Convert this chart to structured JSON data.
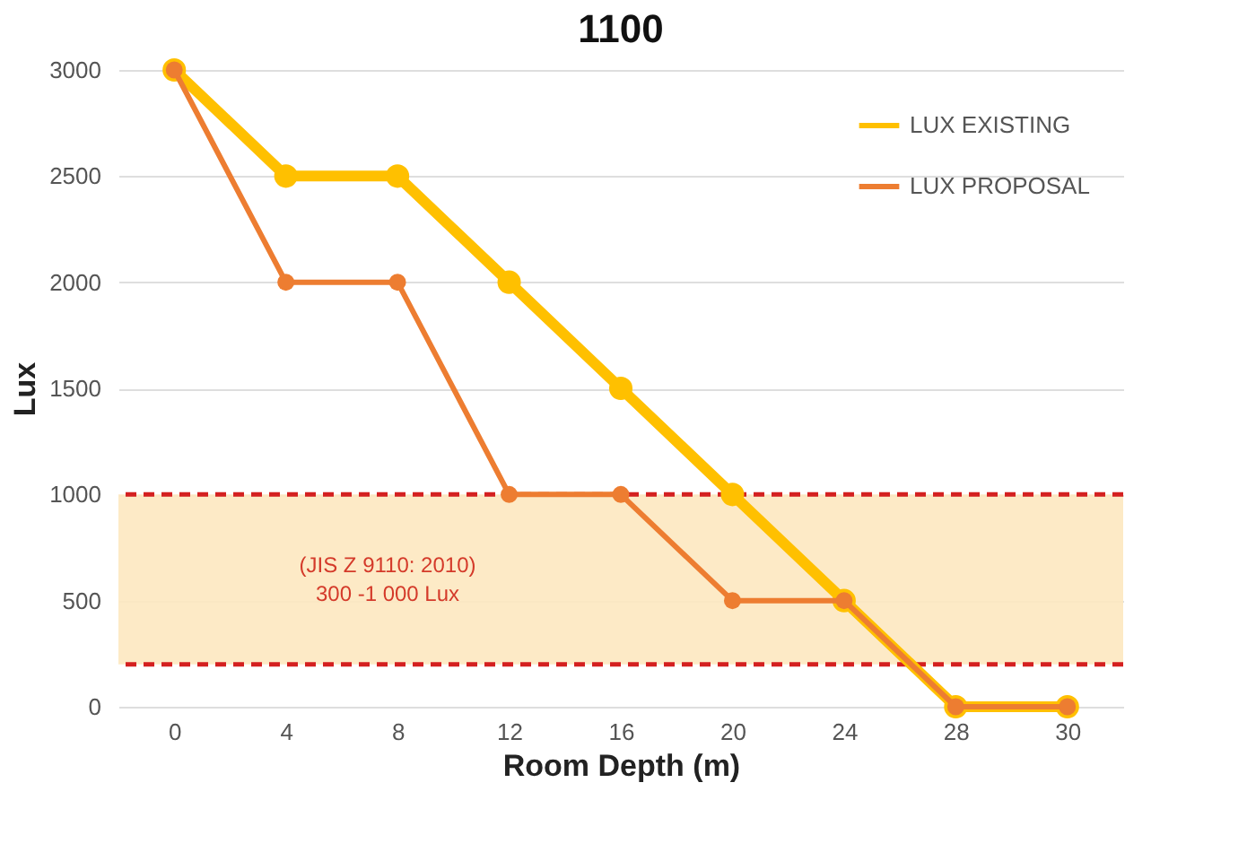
{
  "chart_data": {
    "type": "line",
    "title": "1100",
    "xlabel": "Room Depth (m)",
    "ylabel": "Lux",
    "categories": [
      "0",
      "4",
      "8",
      "12",
      "16",
      "20",
      "24",
      "28",
      "30"
    ],
    "series": [
      {
        "name": "LUX EXISTING",
        "color": "#ffc000",
        "values": [
          3000,
          2500,
          2500,
          2000,
          1500,
          1000,
          500,
          0,
          0
        ]
      },
      {
        "name": "LUX PROPOSAL",
        "color": "#ed7d31",
        "values": [
          3000,
          2000,
          2000,
          1000,
          1000,
          500,
          500,
          0,
          0
        ]
      }
    ],
    "ylim": [
      0,
      3000
    ],
    "yticks": [
      0,
      500,
      1000,
      1500,
      2000,
      2500,
      3000
    ],
    "bands": [
      {
        "axis": "y",
        "from": 200,
        "to": 1000,
        "color": "#fde8c0"
      }
    ],
    "ref_lines": [
      {
        "axis": "y",
        "value": 1000,
        "color": "#d42020",
        "line_style": "dashed"
      },
      {
        "axis": "y",
        "value": 200,
        "color": "#d42020",
        "line_style": "dashed"
      }
    ],
    "annotations": [
      "(JIS Z 9110: 2010)",
      "300 -1 000 Lux"
    ],
    "grid": "y",
    "legend": "top right",
    "marker": "circle",
    "line_style": "solid"
  }
}
